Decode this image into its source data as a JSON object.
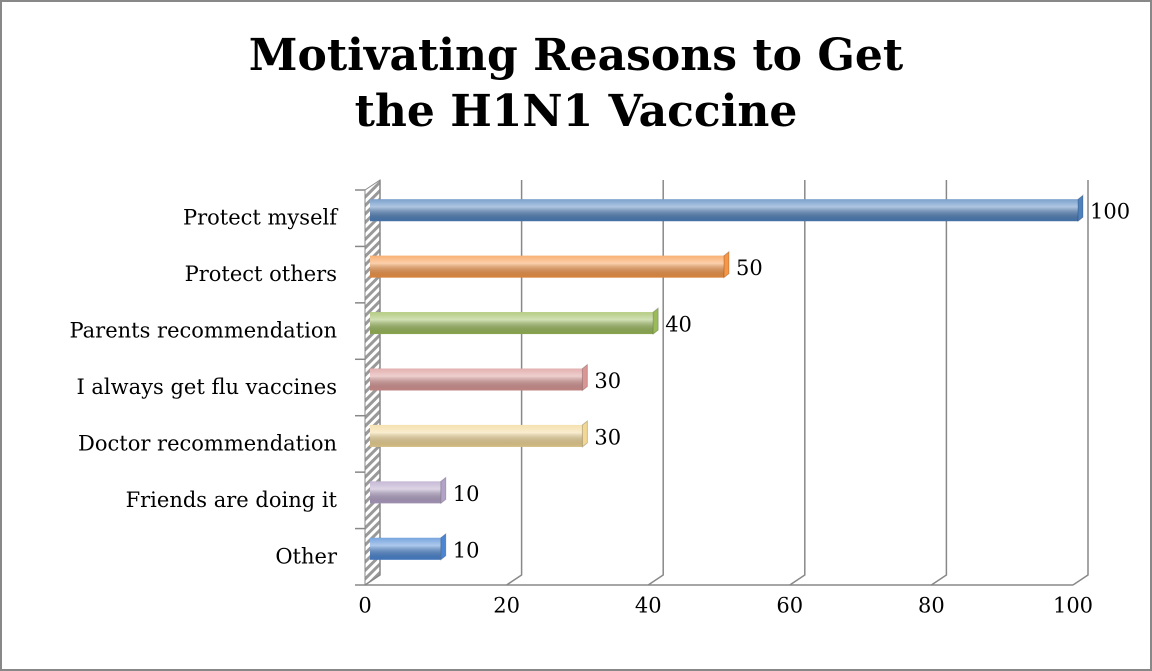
{
  "chart_data": {
    "type": "bar",
    "orientation": "horizontal",
    "title": "Motivating Reasons to Get the H1N1 Vaccine",
    "categories": [
      "Protect myself",
      "Protect others",
      "Parents recommendation",
      "I always get flu vaccines",
      "Doctor recommendation",
      "Friends are doing it",
      "Other"
    ],
    "values": [
      100,
      50,
      40,
      30,
      30,
      10,
      10
    ],
    "colors": [
      "#4f81bd",
      "#f79646",
      "#9bbb59",
      "#d99694",
      "#f2d795",
      "#b3a2c7",
      "#4a86d4"
    ],
    "xlim": [
      0,
      100
    ],
    "xticks": [
      0,
      20,
      40,
      60,
      80,
      100
    ],
    "grid": true
  }
}
